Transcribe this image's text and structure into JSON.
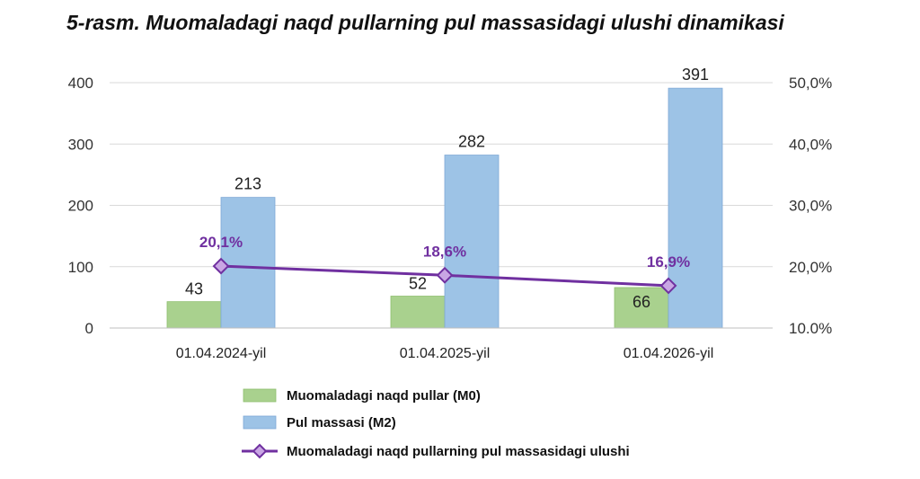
{
  "title": "5-rasm. Muomaladagi naqd pullarning pul massasidagi ulushi dinamikasi",
  "chart_data": {
    "type": "bar",
    "categories": [
      "01.04.2024-yil",
      "01.04.2025-yil",
      "01.04.2026-yil"
    ],
    "series": [
      {
        "name": "Muomaladagi naqd pullar (M0)",
        "type": "bar",
        "axis": "left",
        "color": "#a9d18e",
        "values": [
          43,
          52,
          66
        ],
        "labels": [
          "43",
          "52",
          "66"
        ]
      },
      {
        "name": "Pul massasi (M2)",
        "type": "bar",
        "axis": "left",
        "color": "#9dc3e6",
        "values": [
          213,
          282,
          391
        ],
        "labels": [
          "213",
          "282",
          "391"
        ]
      },
      {
        "name": "Muomaladagi naqd pullarning pul massasidagi ulushi",
        "type": "line",
        "axis": "right",
        "color": "#7030a0",
        "marker": "diamond",
        "values": [
          20.1,
          18.6,
          16.9
        ],
        "labels": [
          "20,1%",
          "18,6%",
          "16,9%"
        ]
      }
    ],
    "y_left": {
      "min": 0,
      "max": 400,
      "ticks": [
        0,
        100,
        200,
        300,
        400
      ],
      "tick_labels": [
        "0",
        "100",
        "200",
        "300",
        "400"
      ]
    },
    "y_right": {
      "min": 10,
      "max": 50,
      "ticks": [
        10,
        20,
        30,
        40,
        50
      ],
      "tick_labels": [
        "10.0%",
        "20,0%",
        "30,0%",
        "40,0%",
        "50,0%"
      ]
    },
    "grid": true,
    "legend_position": "bottom-center"
  }
}
